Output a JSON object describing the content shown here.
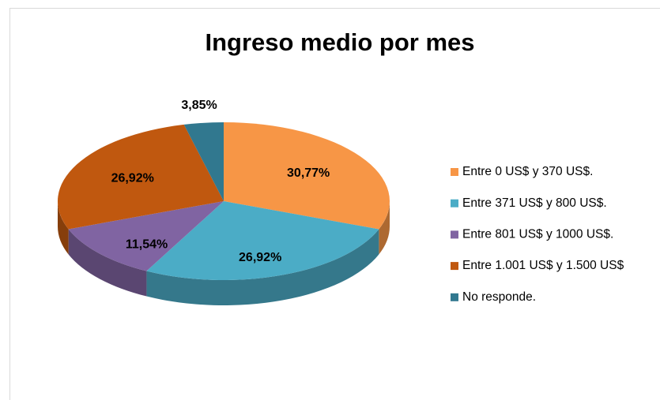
{
  "chart_data": {
    "type": "pie3d",
    "title": "Ingreso medio por mes",
    "categories": [
      "Entre 0 US$ y 370 US$.",
      "Entre 371 US$ y 800 US$.",
      "Entre 801 US$ y 1000 US$.",
      "Entre 1.001 US$ y 1.500 US$",
      "No responde."
    ],
    "values": [
      30.77,
      26.92,
      11.54,
      26.92,
      3.85
    ],
    "value_labels": [
      "30,77%",
      "26,92%",
      "11,54%",
      "26,92%",
      "3,85%"
    ],
    "colors": [
      "#f79646",
      "#4bacc6",
      "#8064a2",
      "#c0580f",
      "#31788f"
    ],
    "legend": "right"
  }
}
